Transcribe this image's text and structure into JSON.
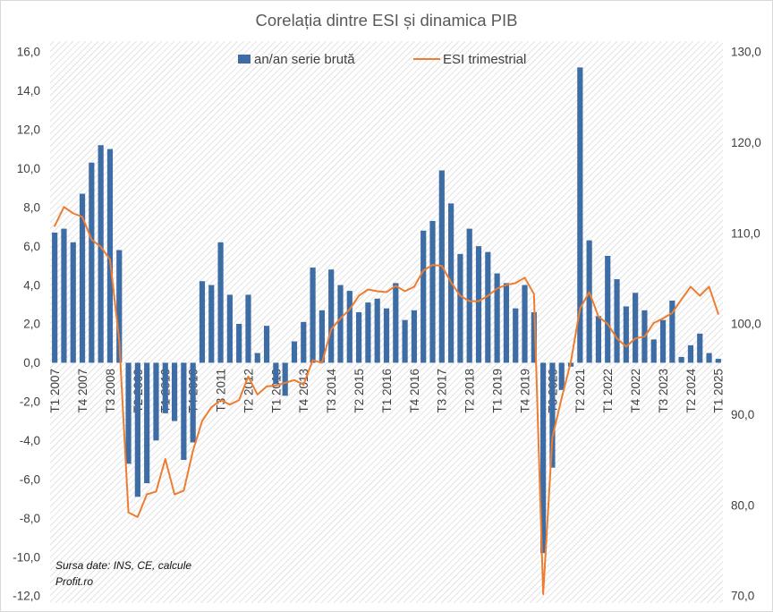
{
  "chart_data": {
    "type": "bar",
    "title": "Corelația dintre ESI și dinamica PIB",
    "x_tick_labels": [
      "T1 2007",
      "T4 2007",
      "T3 2008",
      "T2 2009",
      "T1 2010",
      "T4 2010",
      "T3 2011",
      "T2 2012",
      "T1 2013",
      "T4 2013",
      "T3 2014",
      "T2 2015",
      "T1 2016",
      "T4 2016",
      "T3 2017",
      "T2 2018",
      "T1 2019",
      "T4 2019",
      "T3 2020",
      "T2 2021",
      "T1 2022",
      "T4 2022",
      "T3 2023",
      "T2 2024",
      "T1 2025"
    ],
    "series": [
      {
        "name": "an/an serie brută",
        "type": "bar",
        "y_axis": "left",
        "color": "#3E6DA6",
        "values": [
          6.7,
          6.9,
          6.2,
          8.7,
          10.3,
          11.2,
          11.0,
          5.8,
          -5.2,
          -6.9,
          -6.2,
          -4.0,
          -2.6,
          -3.0,
          -5.0,
          -4.1,
          4.2,
          4.0,
          6.2,
          3.5,
          2.0,
          3.5,
          0.5,
          1.9,
          -1.1,
          -1.7,
          1.1,
          2.1,
          4.9,
          2.7,
          4.8,
          4.0,
          3.7,
          2.6,
          3.1,
          3.3,
          2.8,
          4.1,
          2.2,
          2.7,
          6.8,
          7.3,
          9.9,
          8.2,
          5.6,
          6.9,
          6.0,
          5.7,
          4.6,
          4.1,
          2.8,
          4.0,
          2.6,
          -9.8,
          -5.4,
          -1.4,
          -0.2,
          15.2,
          6.3,
          2.4,
          5.5,
          4.3,
          2.9,
          3.6,
          2.7,
          1.2,
          2.2,
          3.2,
          0.3,
          0.9,
          1.5,
          0.5,
          0.2
        ]
      },
      {
        "name": "ESI trimestrial",
        "type": "line",
        "y_axis": "right",
        "color": "#ED7D31",
        "values": [
          110.8,
          112.9,
          112.2,
          111.8,
          109.3,
          108.5,
          107.1,
          98.2,
          79.2,
          78.7,
          81.2,
          81.5,
          85.1,
          81.2,
          81.6,
          86.0,
          89.3,
          90.8,
          91.6,
          91.1,
          91.6,
          94.2,
          92.2,
          93.1,
          93.2,
          93.5,
          93.8,
          93.3,
          96.0,
          95.7,
          99.4,
          100.6,
          101.6,
          103.1,
          103.8,
          103.6,
          103.5,
          104.2,
          103.6,
          104.1,
          105.9,
          106.5,
          106.4,
          104.6,
          103.1,
          102.5,
          102.5,
          103.1,
          103.9,
          104.3,
          104.5,
          105.1,
          103.3,
          70.2,
          87.5,
          91.8,
          95.8,
          101.7,
          103.5,
          100.8,
          100.0,
          98.4,
          97.5,
          98.4,
          98.6,
          100.1,
          100.6,
          101.2,
          102.7,
          104.1,
          103.1,
          104.1,
          101.1
        ]
      }
    ],
    "ylim": [
      -12,
      16
    ],
    "y2lim": [
      70,
      130
    ],
    "y_tick_labels": [
      "16,0",
      "14,0",
      "12,0",
      "10,0",
      "8,0",
      "6,0",
      "4,0",
      "2,0",
      "0,0",
      "-2,0",
      "-4,0",
      "-6,0",
      "-8,0",
      "-10,0",
      "-12,0"
    ],
    "y2_tick_labels": [
      "130,0",
      "120,0",
      "110,0",
      "100,0",
      "90,0",
      "80,0",
      "70,0"
    ],
    "legend": "top-center",
    "grid": false,
    "source_note": [
      "Sursa date: INS, CE, calcule",
      "Profit.ro"
    ]
  }
}
